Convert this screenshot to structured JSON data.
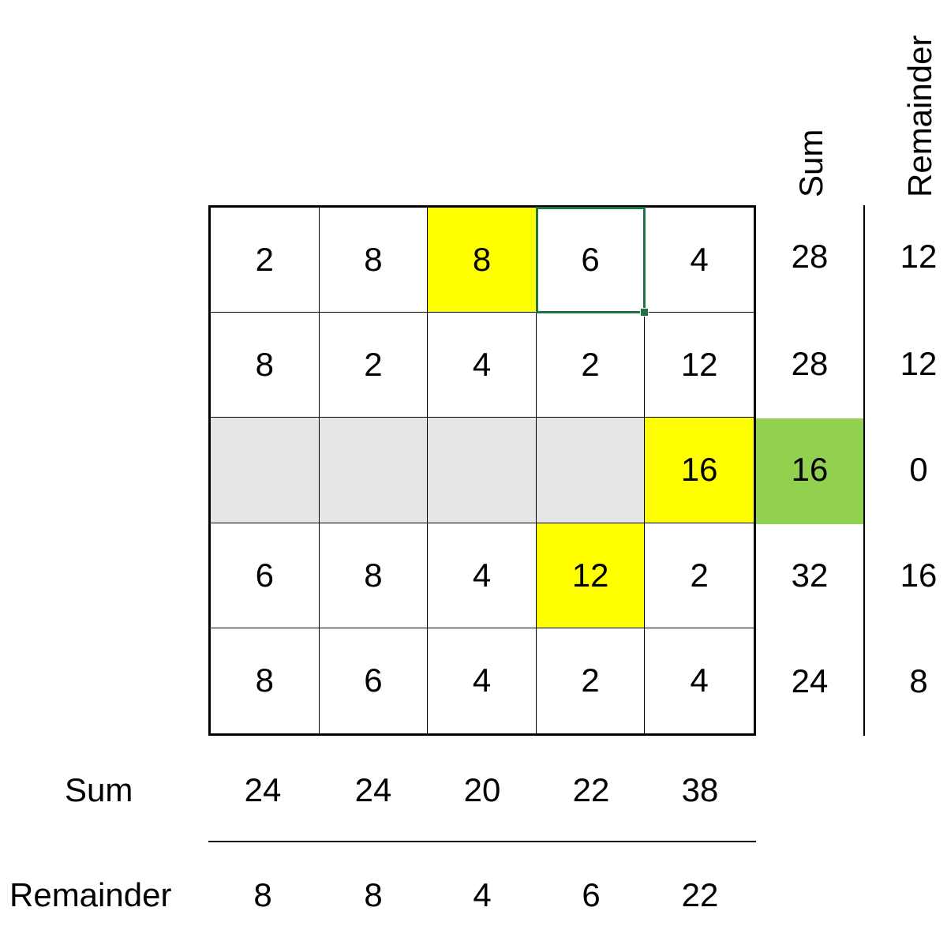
{
  "grid": [
    [
      {
        "v": "2"
      },
      {
        "v": "8"
      },
      {
        "v": "8",
        "hl": "yellow"
      },
      {
        "v": "6",
        "selected": true
      },
      {
        "v": "4"
      }
    ],
    [
      {
        "v": "8"
      },
      {
        "v": "2"
      },
      {
        "v": "4"
      },
      {
        "v": "2"
      },
      {
        "v": "12"
      }
    ],
    [
      {
        "v": "",
        "shaded": true
      },
      {
        "v": "",
        "shaded": true
      },
      {
        "v": "",
        "shaded": true
      },
      {
        "v": "",
        "shaded": true
      },
      {
        "v": "16",
        "hl": "yellow"
      }
    ],
    [
      {
        "v": "6"
      },
      {
        "v": "8"
      },
      {
        "v": "4"
      },
      {
        "v": "12",
        "hl": "yellow"
      },
      {
        "v": "2"
      }
    ],
    [
      {
        "v": "8"
      },
      {
        "v": "6"
      },
      {
        "v": "4"
      },
      {
        "v": "2"
      },
      {
        "v": "4"
      }
    ]
  ],
  "row_sums": [
    "28",
    "28",
    "16",
    "32",
    "24"
  ],
  "row_remainders": [
    "12",
    "12",
    "0",
    "16",
    "8"
  ],
  "col_sums": [
    "24",
    "24",
    "20",
    "22",
    "38"
  ],
  "col_remainders": [
    "8",
    "8",
    "4",
    "6",
    "22"
  ],
  "labels": {
    "sum_top": "Sum",
    "remainder_top": "Remainder",
    "sum_left": "Sum",
    "remainder_left": "Remainder"
  },
  "colors": {
    "highlight": "#ffff00",
    "shaded": "#e6e6e6",
    "green": "#92d050",
    "selection": "#217346"
  }
}
